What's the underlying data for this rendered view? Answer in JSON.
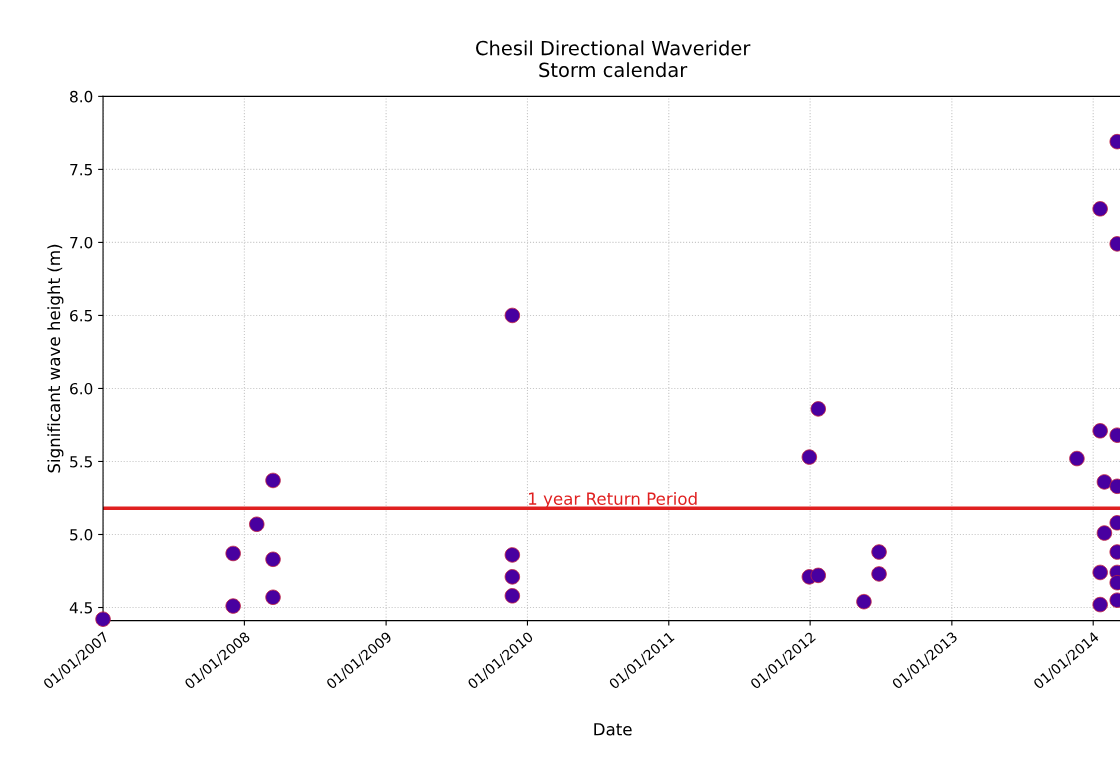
{
  "chart_data": {
    "type": "scatter",
    "title": "Chesil Directional Waverider\nStorm calendar",
    "xlabel": "Date",
    "ylabel": "Significant wave height (m)",
    "x": [
      "2007-01-01",
      "2007-12-03",
      "2008-02-02",
      "2008-03-15",
      "2008-03-15",
      "2008-03-15",
      "2007-12-03",
      "2009-11-23",
      "2009-11-23",
      "2009-11-23",
      "2009-11-23",
      "2011-12-30",
      "2012-01-22",
      "2011-12-30",
      "2012-01-22",
      "2012-05-19",
      "2012-06-27",
      "2012-06-27",
      "2013-11-20",
      "2014-01-19",
      "2014-01-19",
      "2014-01-19",
      "2014-01-19",
      "2014-01-30",
      "2014-01-30",
      "2014-03-04",
      "2014-03-04",
      "2014-03-04",
      "2014-03-04",
      "2014-03-04",
      "2014-03-04",
      "2014-03-04",
      "2014-03-04",
      "2014-03-04"
    ],
    "series": [
      {
        "color": "#4800a0",
        "values": [
          4.42,
          4.87,
          5.07,
          5.37,
          4.83,
          4.57,
          4.51,
          6.5,
          4.86,
          4.71,
          4.58,
          5.53,
          5.86,
          4.71,
          4.72,
          4.54,
          4.88,
          4.73,
          5.52,
          7.23,
          5.71,
          4.74,
          4.52,
          5.36,
          5.01,
          7.69,
          6.99,
          5.68,
          5.33,
          5.08,
          4.88,
          4.74,
          4.67,
          4.55
        ]
      }
    ],
    "marker": "circle",
    "xlim": [
      "2007-01-01",
      "2014-03-17"
    ],
    "xticks": [
      {
        "value": "2007-01-01",
        "label": "01/01/2007"
      },
      {
        "value": "2008-01-01",
        "label": "01/01/2008"
      },
      {
        "value": "2009-01-01",
        "label": "01/01/2009"
      },
      {
        "value": "2010-01-01",
        "label": "01/01/2010"
      },
      {
        "value": "2011-01-01",
        "label": "01/01/2011"
      },
      {
        "value": "2012-01-01",
        "label": "01/01/2012"
      },
      {
        "value": "2013-01-01",
        "label": "01/01/2013"
      },
      {
        "value": "2014-01-01",
        "label": "01/01/2014"
      }
    ],
    "ylim": [
      4.41,
      8.0
    ],
    "yticks": [
      {
        "value": 4.5,
        "label": "4.5"
      },
      {
        "value": 5.0,
        "label": "5.0"
      },
      {
        "value": 5.5,
        "label": "5.5"
      },
      {
        "value": 6.0,
        "label": "6.0"
      },
      {
        "value": 6.5,
        "label": "6.5"
      },
      {
        "value": 7.0,
        "label": "7.0"
      },
      {
        "value": 7.5,
        "label": "7.5"
      },
      {
        "value": 8.0,
        "label": "8.0"
      }
    ],
    "ref_lines": [
      {
        "axis": "y",
        "value": 5.18,
        "label": "1 year Return Period",
        "color": "#e02020",
        "line_style": "solid"
      }
    ],
    "grid": true,
    "legend": false
  }
}
